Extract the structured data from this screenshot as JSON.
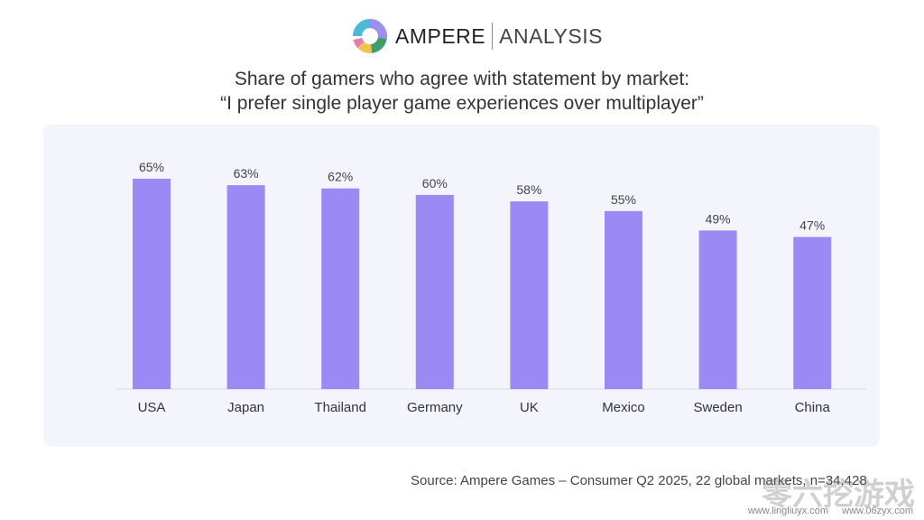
{
  "logo": {
    "brand": "AMPERE",
    "sub": "ANALYSIS"
  },
  "chart_data": {
    "type": "bar",
    "title": "Share of gamers who agree with statement by market:",
    "subtitle": "“I prefer single player game experiences over multiplayer”",
    "categories": [
      "USA",
      "Japan",
      "Thailand",
      "Germany",
      "UK",
      "Mexico",
      "Sweden",
      "China"
    ],
    "values": [
      65,
      63,
      62,
      60,
      58,
      55,
      49,
      47
    ],
    "data_labels": [
      "65%",
      "63%",
      "62%",
      "60%",
      "58%",
      "55%",
      "49%",
      "47%"
    ],
    "ylim": [
      0,
      70
    ],
    "grid": false,
    "bar_color": "#9b89f4"
  },
  "source": "Source: Ampere Games – Consumer Q2 2025, 22 global markets, n=34,428",
  "watermark": {
    "text": "零六挖游戏",
    "urls": "www.lingliuyx.com www.06zyx.com"
  }
}
